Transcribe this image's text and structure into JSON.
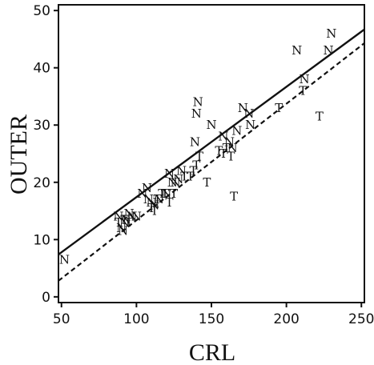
{
  "chart_data": {
    "type": "scatter",
    "xlabel": "CRL",
    "ylabel": "OUTER",
    "xlim": [
      48,
      252
    ],
    "ylim": [
      -1,
      51
    ],
    "xticks": [
      50,
      100,
      150,
      200,
      250
    ],
    "yticks": [
      0,
      10,
      20,
      30,
      40,
      50
    ],
    "grid": false,
    "series": [
      {
        "marker": "N",
        "points": [
          [
            52,
            6.5
          ],
          [
            88,
            14
          ],
          [
            90,
            12
          ],
          [
            91,
            11.5
          ],
          [
            92,
            13
          ],
          [
            93,
            13.5
          ],
          [
            95,
            14.5
          ],
          [
            97,
            14
          ],
          [
            100,
            14
          ],
          [
            104,
            18
          ],
          [
            107,
            19
          ],
          [
            108,
            17
          ],
          [
            110,
            16.5
          ],
          [
            112,
            16
          ],
          [
            115,
            17
          ],
          [
            120,
            18
          ],
          [
            122,
            21.5
          ],
          [
            124,
            20
          ],
          [
            126,
            20
          ],
          [
            128,
            20.5
          ],
          [
            130,
            22
          ],
          [
            139,
            27
          ],
          [
            140,
            32
          ],
          [
            141,
            34
          ],
          [
            150,
            30
          ],
          [
            158,
            28
          ],
          [
            162,
            27
          ],
          [
            164,
            26
          ],
          [
            167,
            29
          ],
          [
            171,
            33
          ],
          [
            175,
            32
          ],
          [
            176,
            30
          ],
          [
            207,
            43
          ],
          [
            212,
            38
          ],
          [
            228,
            43
          ],
          [
            230,
            46
          ]
        ]
      },
      {
        "marker": "T",
        "points": [
          [
            88,
            13
          ],
          [
            92,
            13.5
          ],
          [
            95,
            13
          ],
          [
            110,
            15.5
          ],
          [
            112,
            15
          ],
          [
            114,
            17
          ],
          [
            117,
            18
          ],
          [
            119,
            18
          ],
          [
            122,
            16.5
          ],
          [
            125,
            18
          ],
          [
            132,
            21
          ],
          [
            136,
            21
          ],
          [
            138,
            22
          ],
          [
            140,
            23
          ],
          [
            142,
            24.5
          ],
          [
            147,
            20
          ],
          [
            155,
            25.5
          ],
          [
            158,
            25
          ],
          [
            160,
            26
          ],
          [
            163,
            24.5
          ],
          [
            165,
            17.5
          ],
          [
            195,
            33
          ],
          [
            211,
            36
          ],
          [
            222,
            31.5
          ]
        ]
      }
    ],
    "lines": [
      {
        "style": "solid",
        "x": [
          48,
          252
        ],
        "y": [
          7.4,
          46.7
        ]
      },
      {
        "style": "dashed",
        "x": [
          48,
          252
        ],
        "y": [
          2.8,
          44.3
        ]
      }
    ]
  }
}
